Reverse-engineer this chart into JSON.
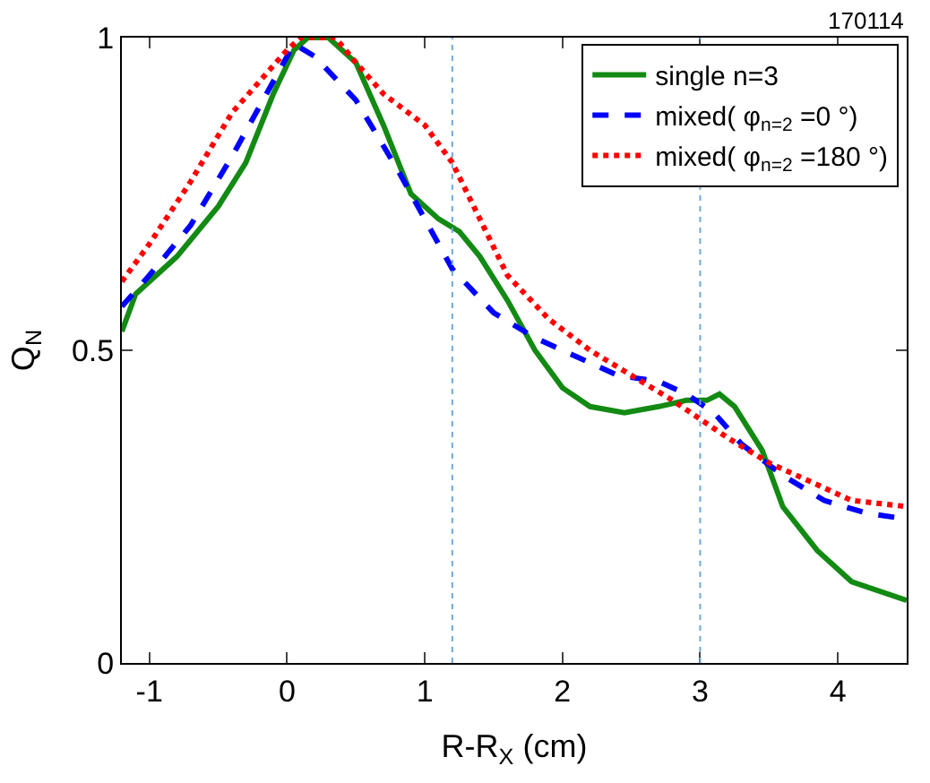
{
  "chart_data": {
    "type": "line",
    "xlabel": "R-R$_{X}$ (cm)",
    "ylabel": "Q$_{N}$",
    "annotations": [
      "170114"
    ],
    "xlim": [
      -1.2,
      4.5
    ],
    "xticks": [
      -1,
      0,
      1,
      2,
      3,
      4
    ],
    "ylim": [
      0,
      1
    ],
    "yticks": [
      0,
      0.5,
      1
    ],
    "legend": "top right",
    "ref_lines": [
      {
        "axis": "x",
        "value": 1.2,
        "color": "#6fa8dc",
        "line_style": "dotted"
      },
      {
        "axis": "x",
        "value": 3,
        "color": "#6fa8dc",
        "line_style": "dotted"
      }
    ],
    "series": [
      {
        "name": "single n=3",
        "color": "#138a13",
        "line_style": "solid",
        "x": [
          -1.2,
          -1.1,
          -0.8,
          -0.5,
          -0.3,
          -0.1,
          0.05,
          0.15,
          0.3,
          0.5,
          0.7,
          0.9,
          1.1,
          1.25,
          1.4,
          1.6,
          1.8,
          2.0,
          2.2,
          2.45,
          2.7,
          2.9,
          3.05,
          3.14,
          3.25,
          3.45,
          3.6,
          3.85,
          4.1,
          4.5
        ],
        "values": [
          0.53,
          0.59,
          0.65,
          0.73,
          0.8,
          0.91,
          0.98,
          1.0,
          1.0,
          0.96,
          0.86,
          0.75,
          0.71,
          0.69,
          0.65,
          0.58,
          0.5,
          0.44,
          0.41,
          0.4,
          0.41,
          0.42,
          0.42,
          0.43,
          0.41,
          0.34,
          0.25,
          0.18,
          0.13,
          0.1
        ]
      },
      {
        "name": "mixed( φ$_{n=2}$ =0 °)",
        "color": "#0000ff",
        "line_style": "dashed",
        "x": [
          -1.2,
          -1,
          -0.7,
          -0.4,
          -0.2,
          0,
          0.05,
          0.2,
          0.5,
          0.8,
          1.0,
          1.2,
          1.5,
          1.8,
          2.1,
          2.4,
          2.7,
          2.9,
          3.1,
          3.3,
          3.6,
          3.9,
          4.2,
          4.5
        ],
        "values": [
          0.57,
          0.62,
          0.7,
          0.81,
          0.89,
          0.97,
          0.99,
          0.97,
          0.9,
          0.79,
          0.71,
          0.63,
          0.56,
          0.52,
          0.49,
          0.46,
          0.45,
          0.43,
          0.4,
          0.35,
          0.3,
          0.26,
          0.24,
          0.23
        ]
      },
      {
        "name": "mixed( φ$_{n=2}$ =180 °)",
        "color": "#ff0000",
        "line_style": "dotted",
        "x": [
          -1.2,
          -1,
          -0.7,
          -0.4,
          -0.2,
          0,
          0.1,
          0.35,
          0.5,
          0.7,
          1.0,
          1.2,
          1.4,
          1.6,
          1.9,
          2.2,
          2.5,
          2.8,
          3.0,
          3.2,
          3.5,
          3.8,
          4.1,
          4.5
        ],
        "values": [
          0.61,
          0.67,
          0.77,
          0.88,
          0.93,
          0.98,
          1.0,
          1.0,
          0.96,
          0.91,
          0.86,
          0.8,
          0.71,
          0.62,
          0.55,
          0.5,
          0.46,
          0.42,
          0.39,
          0.36,
          0.32,
          0.29,
          0.26,
          0.25
        ]
      }
    ]
  }
}
